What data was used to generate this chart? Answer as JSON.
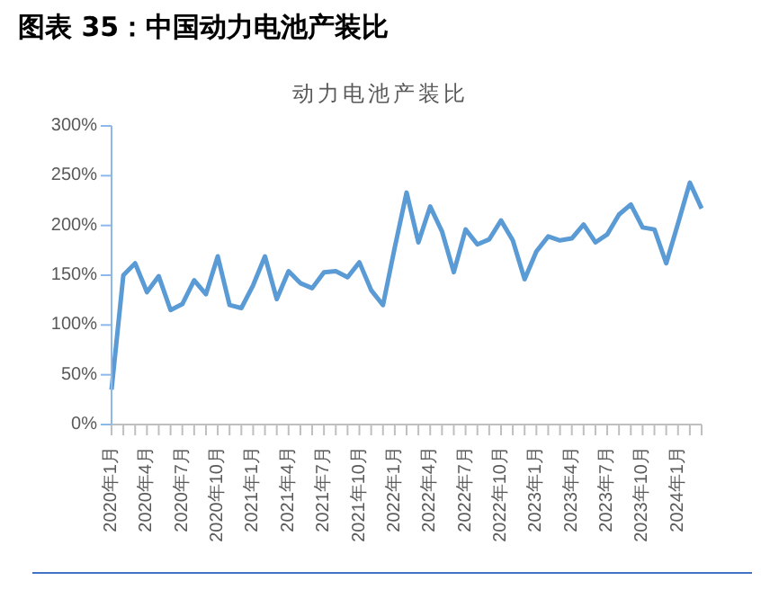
{
  "chart_data": {
    "type": "line",
    "title": "图表 35：中国动力电池产装比",
    "subtitle": "动力电池产装比",
    "categories": [
      "2020年1月",
      null,
      null,
      "2020年4月",
      null,
      null,
      "2020年7月",
      null,
      null,
      "2020年10月",
      null,
      null,
      "2021年1月",
      null,
      null,
      "2021年4月",
      null,
      null,
      "2021年7月",
      null,
      null,
      "2021年10月",
      null,
      null,
      "2022年1月",
      null,
      null,
      "2022年4月",
      null,
      null,
      "2022年7月",
      null,
      null,
      "2022年10月",
      null,
      null,
      "2023年1月",
      null,
      null,
      "2023年4月",
      null,
      null,
      "2023年7月",
      null,
      null,
      "2023年10月",
      null,
      null,
      "2024年1月",
      null,
      null
    ],
    "series": [
      {
        "color": "#5b9bd5",
        "values": [
          35,
          150,
          162,
          133,
          149,
          115,
          121,
          145,
          131,
          169,
          120,
          117,
          140,
          169,
          126,
          154,
          142,
          137,
          153,
          154,
          148,
          163,
          135,
          120,
          178,
          233,
          183,
          219,
          194,
          153,
          196,
          181,
          186,
          205,
          185,
          146,
          174,
          189,
          185,
          187,
          201,
          183,
          191,
          211,
          221,
          198,
          196,
          162,
          202,
          243,
          217
        ]
      }
    ],
    "ylim": [
      0,
      300
    ],
    "yticks": [
      {
        "value": 0,
        "label": "0%"
      },
      {
        "value": 50,
        "label": "50%"
      },
      {
        "value": 100,
        "label": "100%"
      },
      {
        "value": 150,
        "label": "150%"
      },
      {
        "value": 200,
        "label": "200%"
      },
      {
        "value": 250,
        "label": "250%"
      },
      {
        "value": 300,
        "label": "300%"
      }
    ],
    "grid": false,
    "legend": false,
    "marker": "none",
    "line_style": "solid"
  }
}
